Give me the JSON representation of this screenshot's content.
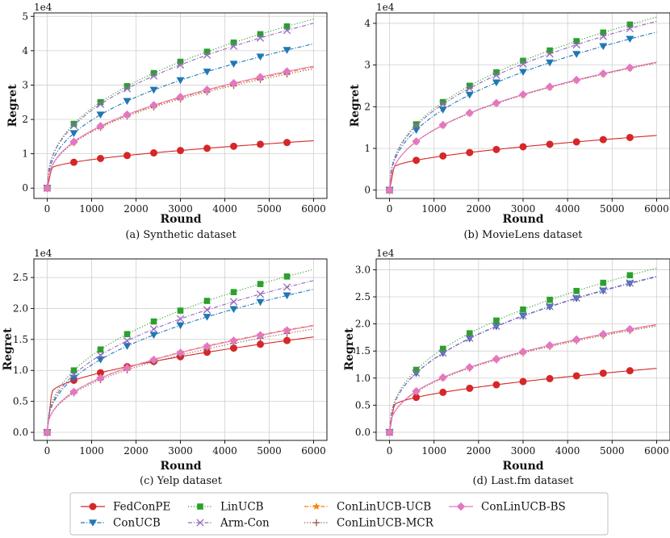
{
  "chart_data": [
    {
      "type": "line",
      "caption": "(a) Synthetic dataset",
      "xlabel": "Round",
      "ylabel": "Regret",
      "scale_label": "1e4",
      "xlim": [
        -300,
        6300
      ],
      "ylim": [
        -0.3,
        5.1
      ],
      "xticks": [
        0,
        1000,
        2000,
        3000,
        4000,
        5000,
        6000
      ],
      "yticks": [
        0,
        1,
        2,
        3,
        4,
        5
      ],
      "ytick_decimals": 0,
      "grid": true,
      "series": [
        {
          "name": "FedConPE",
          "end": 1.38
        },
        {
          "name": "ConUCB",
          "end": 4.2
        },
        {
          "name": "LinUCB",
          "end": 4.92
        },
        {
          "name": "Arm-Con",
          "end": 4.8
        },
        {
          "name": "ConLinUCB-UCB",
          "end": 3.52
        },
        {
          "name": "ConLinUCB-MCR",
          "end": 3.47
        },
        {
          "name": "ConLinUCB-BS",
          "end": 3.55
        }
      ]
    },
    {
      "type": "line",
      "caption": "(b) MovieLens dataset",
      "xlabel": "Round",
      "ylabel": "Regret",
      "scale_label": "1e4",
      "xlim": [
        -300,
        6300
      ],
      "ylim": [
        -0.2,
        4.25
      ],
      "xticks": [
        0,
        1000,
        2000,
        3000,
        4000,
        5000,
        6000
      ],
      "yticks": [
        0,
        1,
        2,
        3,
        4
      ],
      "ytick_decimals": 0,
      "grid": true,
      "series": [
        {
          "name": "FedConPE",
          "end": 1.31
        },
        {
          "name": "ConUCB",
          "end": 3.79
        },
        {
          "name": "LinUCB",
          "end": 4.15
        },
        {
          "name": "Arm-Con",
          "end": 4.05
        },
        {
          "name": "ConLinUCB-UCB",
          "end": 3.06
        },
        {
          "name": "ConLinUCB-MCR",
          "end": 3.05
        },
        {
          "name": "ConLinUCB-BS",
          "end": 3.07
        }
      ]
    },
    {
      "type": "line",
      "caption": "(c) Yelp dataset",
      "xlabel": "Round",
      "ylabel": "Regret",
      "scale_label": "1e4",
      "xlim": [
        -300,
        6300
      ],
      "ylim": [
        -0.13,
        2.8
      ],
      "xticks": [
        0,
        1000,
        2000,
        3000,
        4000,
        5000,
        6000
      ],
      "yticks": [
        0,
        0.5,
        1.0,
        1.5,
        2.0,
        2.5
      ],
      "ytick_decimals": 1,
      "grid": true,
      "series": [
        {
          "name": "FedConPE",
          "end": 1.54
        },
        {
          "name": "ConUCB",
          "end": 2.31
        },
        {
          "name": "LinUCB",
          "end": 2.63
        },
        {
          "name": "Arm-Con",
          "end": 2.45
        },
        {
          "name": "ConLinUCB-UCB",
          "end": 1.73
        },
        {
          "name": "ConLinUCB-MCR",
          "end": 1.67
        },
        {
          "name": "ConLinUCB-BS",
          "end": 1.72
        }
      ]
    },
    {
      "type": "line",
      "caption": "(d) Last.fm dataset",
      "xlabel": "Round",
      "ylabel": "Regret",
      "scale_label": "1e4",
      "xlim": [
        -300,
        6300
      ],
      "ylim": [
        -0.15,
        3.2
      ],
      "xticks": [
        0,
        1000,
        2000,
        3000,
        4000,
        5000,
        6000
      ],
      "yticks": [
        0,
        0.5,
        1.0,
        1.5,
        2.0,
        2.5,
        3.0
      ],
      "ytick_decimals": 1,
      "grid": true,
      "series": [
        {
          "name": "FedConPE",
          "end": 1.18
        },
        {
          "name": "ConUCB",
          "end": 2.87
        },
        {
          "name": "LinUCB",
          "end": 3.03
        },
        {
          "name": "Arm-Con",
          "end": 2.88
        },
        {
          "name": "ConLinUCB-UCB",
          "end": 1.98
        },
        {
          "name": "ConLinUCB-MCR",
          "end": 1.96
        },
        {
          "name": "ConLinUCB-BS",
          "end": 1.99
        }
      ]
    }
  ],
  "legend": {
    "placement": "bottom",
    "entries": [
      {
        "name": "FedConPE",
        "color": "#d62728",
        "marker": "circle",
        "dash": "solid"
      },
      {
        "name": "LinUCB",
        "color": "#2ca02c",
        "marker": "square",
        "dash": "dot"
      },
      {
        "name": "ConLinUCB-UCB",
        "color": "#ff7f0e",
        "marker": "star",
        "dash": "dashdot"
      },
      {
        "name": "ConLinUCB-BS",
        "color": "#e377c2",
        "marker": "diamond",
        "dash": "solid"
      },
      {
        "name": "ConUCB",
        "color": "#1f77b4",
        "marker": "triangle-down",
        "dash": "dashdot"
      },
      {
        "name": "Arm-Con",
        "color": "#9467bd",
        "marker": "x",
        "dash": "dashdot"
      },
      {
        "name": "ConLinUCB-MCR",
        "color": "#8c564b",
        "marker": "plus",
        "dash": "dot"
      }
    ]
  }
}
